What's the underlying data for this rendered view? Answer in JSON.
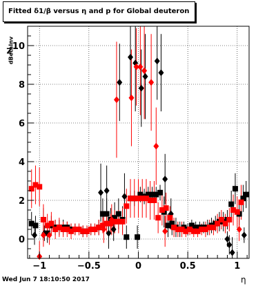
{
  "title": "Fitted δ1/β versus η and p for Global deuteron",
  "ylabel_main": "Z",
  "ylabel_sub": "dBetaInv",
  "xlabel": "η",
  "datestamp": "Wed Jun  7 18:10:50 2017",
  "chart_data": {
    "type": "scatter",
    "title": "Fitted δ1/β versus η and p for Global deuteron",
    "xlabel": "η",
    "ylabel": "Z_dBetaInv",
    "xlim": [
      -1.12,
      1.12
    ],
    "ylim": [
      -1.0,
      11.0
    ],
    "x_ticks": [
      -1,
      -0.5,
      0,
      0.5,
      1
    ],
    "x_tick_labels": [
      "−1",
      "−0.5",
      "0",
      "0.5",
      "1"
    ],
    "y_ticks": [
      0,
      2,
      4,
      6,
      8,
      10
    ],
    "y_tick_labels": [
      "0",
      "2",
      "4",
      "6",
      "8",
      "10"
    ],
    "grid": true,
    "series": [
      {
        "marker": "diamond",
        "color": "#000000",
        "points": [
          {
            "x": -1.05,
            "y": 0.2,
            "err": 0.5
          },
          {
            "x": -0.95,
            "y": 0.3,
            "err": 0.4
          },
          {
            "x": -0.3,
            "y": 0.3,
            "err": 0.8
          },
          {
            "x": -0.25,
            "y": 0.5,
            "err": 0.6
          },
          {
            "x": -0.19,
            "y": 8.1,
            "err": 2.0
          },
          {
            "x": -0.08,
            "y": 9.4,
            "err": 2.0
          },
          {
            "x": -0.03,
            "y": 9.1,
            "err": 2.5
          },
          {
            "x": 0.03,
            "y": 7.8,
            "err": 2.0
          },
          {
            "x": 0.07,
            "y": 8.4,
            "err": 2.2
          },
          {
            "x": 0.19,
            "y": 9.2,
            "err": 2.0
          },
          {
            "x": 0.23,
            "y": 8.6,
            "err": 2.0
          },
          {
            "x": 0.27,
            "y": 3.1,
            "err": 1.3
          },
          {
            "x": -0.38,
            "y": 2.4,
            "err": 1.5
          },
          {
            "x": -0.32,
            "y": 2.5,
            "err": 1.3
          },
          {
            "x": -0.14,
            "y": 2.2,
            "err": 1.2
          },
          {
            "x": 0.33,
            "y": 1.3,
            "err": 0.8
          },
          {
            "x": 0.9,
            "y": 0.0,
            "err": 0.4
          },
          {
            "x": 0.92,
            "y": -0.3,
            "err": 0.5
          },
          {
            "x": 0.95,
            "y": -0.7,
            "err": 0.8
          },
          {
            "x": 1.07,
            "y": 0.2,
            "err": 0.4
          }
        ]
      },
      {
        "marker": "square",
        "color": "#000000",
        "points": [
          {
            "x": -1.08,
            "y": 0.8,
            "err": 0.6
          },
          {
            "x": -1.04,
            "y": 0.7,
            "err": 0.5
          },
          {
            "x": -0.96,
            "y": 1.0,
            "err": 0.6
          },
          {
            "x": -0.92,
            "y": 0.3,
            "err": 0.5
          },
          {
            "x": -0.88,
            "y": 0.7,
            "err": 0.5
          },
          {
            "x": -0.84,
            "y": 0.6,
            "err": 0.4
          },
          {
            "x": -0.8,
            "y": 0.6,
            "err": 0.4
          },
          {
            "x": -0.76,
            "y": 0.6,
            "err": 0.4
          },
          {
            "x": -0.72,
            "y": 0.6,
            "err": 0.3
          },
          {
            "x": -0.68,
            "y": 0.5,
            "err": 0.3
          },
          {
            "x": -0.64,
            "y": 0.5,
            "err": 0.3
          },
          {
            "x": -0.6,
            "y": 0.5,
            "err": 0.3
          },
          {
            "x": -0.56,
            "y": 0.4,
            "err": 0.3
          },
          {
            "x": -0.52,
            "y": 0.4,
            "err": 0.3
          },
          {
            "x": -0.48,
            "y": 0.5,
            "err": 0.3
          },
          {
            "x": -0.44,
            "y": 0.5,
            "err": 0.3
          },
          {
            "x": -0.4,
            "y": 0.6,
            "err": 0.4
          },
          {
            "x": -0.36,
            "y": 1.3,
            "err": 0.8
          },
          {
            "x": -0.32,
            "y": 1.3,
            "err": 0.8
          },
          {
            "x": -0.28,
            "y": 1.0,
            "err": 0.6
          },
          {
            "x": -0.24,
            "y": 1.1,
            "err": 0.8
          },
          {
            "x": -0.2,
            "y": 1.3,
            "err": 0.8
          },
          {
            "x": -0.16,
            "y": 1.0,
            "err": 0.7
          },
          {
            "x": -0.12,
            "y": 0.1,
            "err": 0.6
          },
          {
            "x": -0.08,
            "y": 2.1,
            "err": 0.4
          },
          {
            "x": -0.04,
            "y": 2.1,
            "err": 0.4
          },
          {
            "x": -0.01,
            "y": 0.1,
            "err": 0.6
          },
          {
            "x": 0.02,
            "y": 2.3,
            "err": 0.4
          },
          {
            "x": 0.06,
            "y": 2.2,
            "err": 0.4
          },
          {
            "x": 0.1,
            "y": 2.3,
            "err": 0.4
          },
          {
            "x": 0.14,
            "y": 2.3,
            "err": 0.4
          },
          {
            "x": 0.18,
            "y": 2.3,
            "err": 0.4
          },
          {
            "x": 0.22,
            "y": 2.4,
            "err": 0.4
          },
          {
            "x": 0.26,
            "y": 1.4,
            "err": 0.8
          },
          {
            "x": 0.3,
            "y": 0.7,
            "err": 0.6
          },
          {
            "x": 0.34,
            "y": 0.8,
            "err": 0.6
          },
          {
            "x": 0.38,
            "y": 0.6,
            "err": 0.5
          },
          {
            "x": 0.42,
            "y": 0.5,
            "err": 0.4
          },
          {
            "x": 0.46,
            "y": 0.6,
            "err": 0.3
          },
          {
            "x": 0.5,
            "y": 0.5,
            "err": 0.3
          },
          {
            "x": 0.54,
            "y": 0.7,
            "err": 0.3
          },
          {
            "x": 0.58,
            "y": 0.6,
            "err": 0.3
          },
          {
            "x": 0.62,
            "y": 0.6,
            "err": 0.3
          },
          {
            "x": 0.66,
            "y": 0.6,
            "err": 0.3
          },
          {
            "x": 0.7,
            "y": 0.6,
            "err": 0.4
          },
          {
            "x": 0.74,
            "y": 0.7,
            "err": 0.4
          },
          {
            "x": 0.78,
            "y": 0.8,
            "err": 0.4
          },
          {
            "x": 0.82,
            "y": 0.9,
            "err": 0.5
          },
          {
            "x": 0.86,
            "y": 0.9,
            "err": 0.5
          },
          {
            "x": 0.9,
            "y": 1.0,
            "err": 0.5
          },
          {
            "x": 0.94,
            "y": 1.8,
            "err": 0.7
          },
          {
            "x": 0.98,
            "y": 2.6,
            "err": 0.8
          },
          {
            "x": 1.02,
            "y": 1.3,
            "err": 0.6
          },
          {
            "x": 1.06,
            "y": 2.1,
            "err": 0.7
          },
          {
            "x": 1.09,
            "y": 2.3,
            "err": 0.7
          }
        ]
      },
      {
        "marker": "diamond",
        "color": "#ff0000",
        "points": [
          {
            "x": -1.0,
            "y": -0.9,
            "err": 0.8
          },
          {
            "x": -0.96,
            "y": 0.2,
            "err": 0.6
          },
          {
            "x": -0.9,
            "y": 0.2,
            "err": 0.5
          },
          {
            "x": -0.22,
            "y": 7.2,
            "err": 3.0
          },
          {
            "x": -0.07,
            "y": 7.3,
            "err": 2.5
          },
          {
            "x": -0.02,
            "y": 8.9,
            "err": 2.0
          },
          {
            "x": 0.02,
            "y": 8.9,
            "err": 2.5
          },
          {
            "x": 0.06,
            "y": 8.7,
            "err": 2.5
          },
          {
            "x": 0.13,
            "y": 8.1,
            "err": 2.5
          },
          {
            "x": 0.18,
            "y": 4.8,
            "err": 2.0
          },
          {
            "x": -0.35,
            "y": 0.5,
            "err": 0.7
          },
          {
            "x": -0.27,
            "y": 1.0,
            "err": 0.8
          },
          {
            "x": 0.27,
            "y": 0.4,
            "err": 0.8
          },
          {
            "x": 1.02,
            "y": 0.5,
            "err": 0.6
          }
        ]
      },
      {
        "marker": "square",
        "color": "#ff0000",
        "points": [
          {
            "x": -1.08,
            "y": 2.6,
            "err": 1.0
          },
          {
            "x": -1.04,
            "y": 2.8,
            "err": 1.0
          },
          {
            "x": -1.0,
            "y": 2.7,
            "err": 1.0
          },
          {
            "x": -0.96,
            "y": 1.0,
            "err": 0.8
          },
          {
            "x": -0.92,
            "y": 0.7,
            "err": 0.6
          },
          {
            "x": -0.88,
            "y": 0.8,
            "err": 0.6
          },
          {
            "x": -0.84,
            "y": 0.5,
            "err": 0.5
          },
          {
            "x": -0.8,
            "y": 0.6,
            "err": 0.5
          },
          {
            "x": -0.76,
            "y": 0.5,
            "err": 0.4
          },
          {
            "x": -0.72,
            "y": 0.5,
            "err": 0.4
          },
          {
            "x": -0.68,
            "y": 0.4,
            "err": 0.4
          },
          {
            "x": -0.64,
            "y": 0.5,
            "err": 0.3
          },
          {
            "x": -0.6,
            "y": 0.5,
            "err": 0.3
          },
          {
            "x": -0.56,
            "y": 0.4,
            "err": 0.3
          },
          {
            "x": -0.52,
            "y": 0.4,
            "err": 0.3
          },
          {
            "x": -0.48,
            "y": 0.5,
            "err": 0.3
          },
          {
            "x": -0.44,
            "y": 0.5,
            "err": 0.3
          },
          {
            "x": -0.4,
            "y": 0.6,
            "err": 0.4
          },
          {
            "x": -0.36,
            "y": 0.7,
            "err": 0.4
          },
          {
            "x": -0.32,
            "y": 0.8,
            "err": 0.5
          },
          {
            "x": -0.28,
            "y": 0.8,
            "err": 0.5
          },
          {
            "x": -0.24,
            "y": 0.9,
            "err": 0.6
          },
          {
            "x": -0.2,
            "y": 0.9,
            "err": 0.6
          },
          {
            "x": -0.16,
            "y": 0.9,
            "err": 0.7
          },
          {
            "x": -0.12,
            "y": 1.7,
            "err": 0.9
          },
          {
            "x": -0.08,
            "y": 2.1,
            "err": 1.0
          },
          {
            "x": -0.04,
            "y": 2.1,
            "err": 1.0
          },
          {
            "x": 0.0,
            "y": 2.1,
            "err": 1.0
          },
          {
            "x": 0.04,
            "y": 2.1,
            "err": 1.0
          },
          {
            "x": 0.08,
            "y": 2.1,
            "err": 1.0
          },
          {
            "x": 0.12,
            "y": 2.0,
            "err": 1.0
          },
          {
            "x": 0.16,
            "y": 2.0,
            "err": 1.0
          },
          {
            "x": 0.2,
            "y": 1.1,
            "err": 0.8
          },
          {
            "x": 0.24,
            "y": 1.5,
            "err": 0.8
          },
          {
            "x": 0.28,
            "y": 1.6,
            "err": 0.8
          },
          {
            "x": 0.32,
            "y": 1.1,
            "err": 0.6
          },
          {
            "x": 0.36,
            "y": 0.6,
            "err": 0.5
          },
          {
            "x": 0.4,
            "y": 0.5,
            "err": 0.4
          },
          {
            "x": 0.44,
            "y": 0.5,
            "err": 0.4
          },
          {
            "x": 0.48,
            "y": 0.4,
            "err": 0.3
          },
          {
            "x": 0.52,
            "y": 0.5,
            "err": 0.3
          },
          {
            "x": 0.56,
            "y": 0.4,
            "err": 0.3
          },
          {
            "x": 0.6,
            "y": 0.4,
            "err": 0.3
          },
          {
            "x": 0.64,
            "y": 0.5,
            "err": 0.3
          },
          {
            "x": 0.68,
            "y": 0.5,
            "err": 0.4
          },
          {
            "x": 0.72,
            "y": 0.6,
            "err": 0.4
          },
          {
            "x": 0.76,
            "y": 0.6,
            "err": 0.4
          },
          {
            "x": 0.8,
            "y": 0.8,
            "err": 0.5
          },
          {
            "x": 0.84,
            "y": 1.0,
            "err": 0.5
          },
          {
            "x": 0.88,
            "y": 0.8,
            "err": 0.5
          },
          {
            "x": 0.92,
            "y": 1.0,
            "err": 0.6
          },
          {
            "x": 0.96,
            "y": 1.5,
            "err": 0.8
          },
          {
            "x": 1.0,
            "y": 1.4,
            "err": 0.8
          },
          {
            "x": 1.04,
            "y": 1.9,
            "err": 0.9
          }
        ]
      }
    ]
  }
}
